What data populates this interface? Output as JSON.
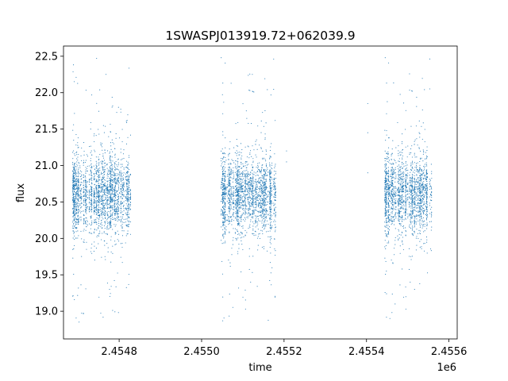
{
  "chart_data": {
    "type": "scatter",
    "title": "1SWASPJ013919.72+062039.9",
    "xlabel": "time",
    "ylabel": "flux",
    "x_offset_label": "1e6",
    "xlim": [
      2454665,
      2455620
    ],
    "ylim": [
      18.62,
      22.64
    ],
    "x_ticks": [
      2.4548,
      2.455,
      2.4552,
      2.4554,
      2.4556
    ],
    "x_tick_labels": [
      "2.4548",
      "2.4550",
      "2.4552",
      "2.4554",
      "2.4556"
    ],
    "y_ticks": [
      19.0,
      19.5,
      20.0,
      20.5,
      21.0,
      21.5,
      22.0,
      22.5
    ],
    "y_tick_labels": [
      "19.0",
      "19.5",
      "20.0",
      "20.5",
      "21.0",
      "21.5",
      "22.0",
      "22.5"
    ],
    "grid": false,
    "marker_color": "#1f77b4",
    "observing_seasons": [
      {
        "x_range": [
          2454687,
          2454828
        ],
        "y_core": [
          20.2,
          21.0
        ],
        "y_extent": [
          18.8,
          22.5
        ]
      },
      {
        "x_range": [
          2455046,
          2455180
        ],
        "y_core": [
          20.2,
          21.0
        ],
        "y_extent": [
          18.8,
          22.5
        ]
      },
      {
        "x_range": [
          2455444,
          2455558
        ],
        "y_core": [
          20.2,
          21.0
        ],
        "y_extent": [
          18.85,
          22.5
        ]
      }
    ],
    "isolated_points": [
      {
        "x": 2455206,
        "y": 21.05
      },
      {
        "x": 2455206,
        "y": 21.2
      },
      {
        "x": 2455403,
        "y": 20.9
      },
      {
        "x": 2455403,
        "y": 21.45
      },
      {
        "x": 2455403,
        "y": 21.85
      }
    ]
  }
}
